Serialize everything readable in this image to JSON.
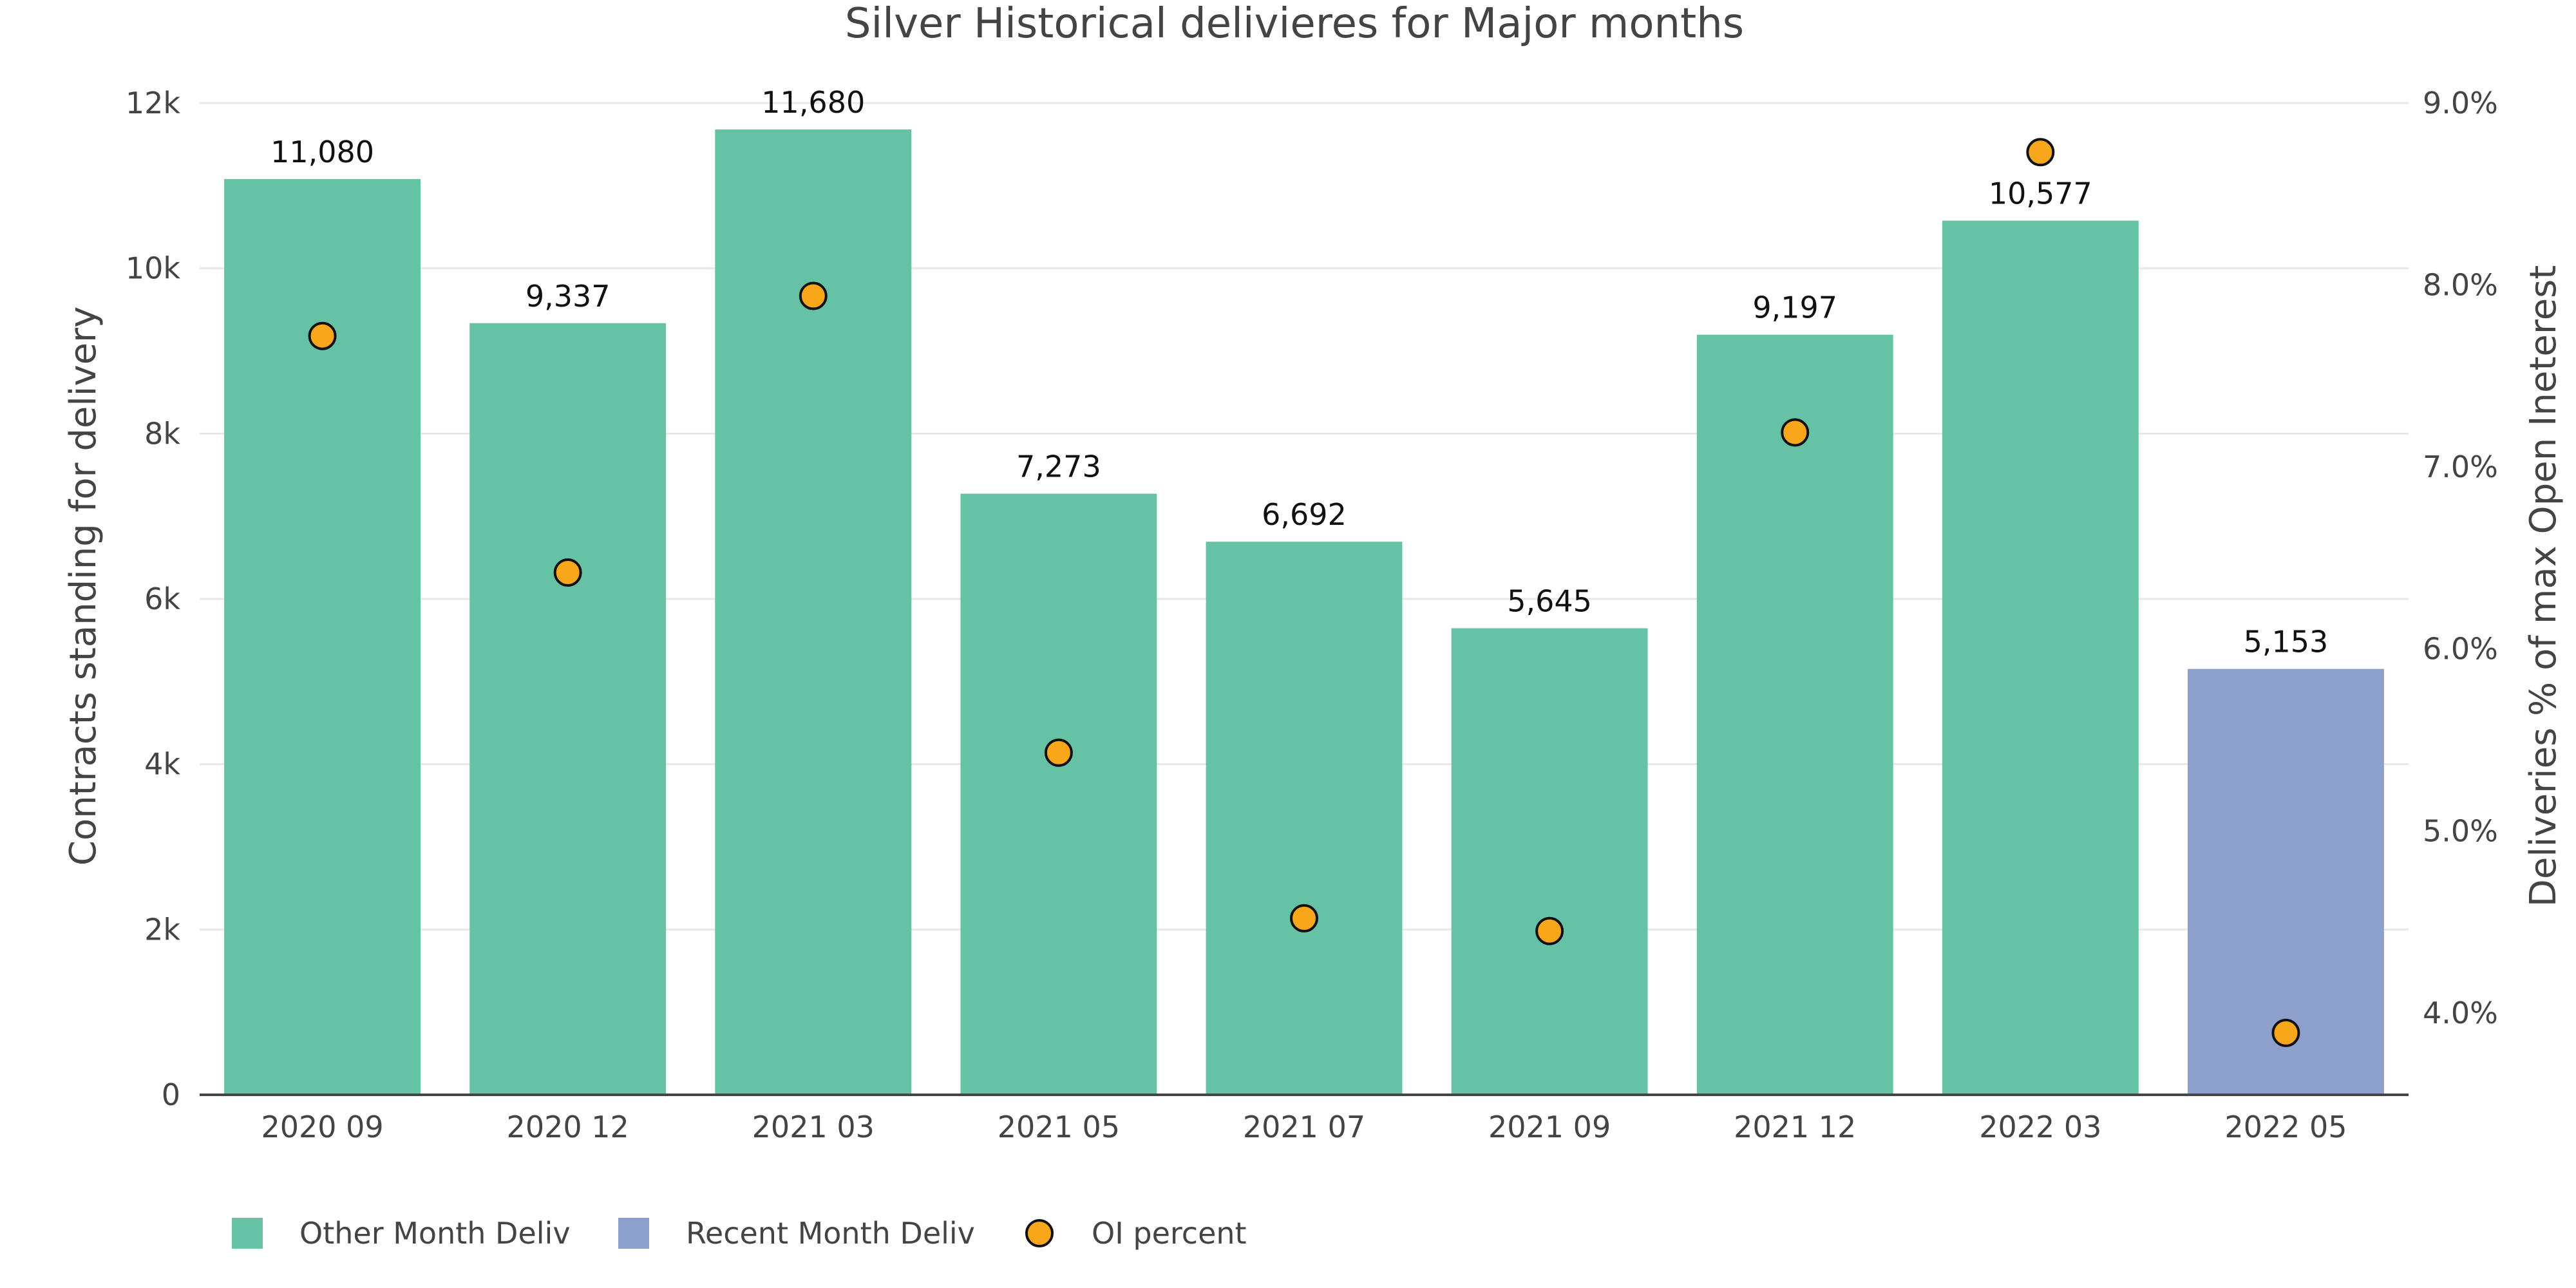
{
  "chart_data": {
    "type": "bar",
    "title": "Silver Historical delivieres for Major months",
    "xlabel": "",
    "ylabel": "Contracts standing for delivery",
    "y2label": "Deliveries % of max Open Ineterest",
    "categories": [
      "2020 09",
      "2020 12",
      "2021 03",
      "2021 05",
      "2021 07",
      "2021 09",
      "2021 12",
      "2022 03",
      "2022 05"
    ],
    "values": [
      11080,
      9337,
      11680,
      7273,
      6692,
      5645,
      9197,
      10577,
      5153
    ],
    "value_labels": [
      "11,080",
      "9,337",
      "11,680",
      "7,273",
      "6,692",
      "5,645",
      "9,197",
      "10,577",
      "5,153"
    ],
    "bar_series": [
      "Other Month Deliv",
      "Other Month Deliv",
      "Other Month Deliv",
      "Other Month Deliv",
      "Other Month Deliv",
      "Other Month Deliv",
      "Other Month Deliv",
      "Other Month Deliv",
      "Recent Month Deliv"
    ],
    "oi_percent": [
      7.72,
      6.42,
      7.94,
      5.43,
      4.52,
      4.45,
      7.19,
      8.73,
      3.89
    ],
    "ylim": [
      0,
      12000
    ],
    "y_ticks": [
      0,
      2000,
      4000,
      6000,
      8000,
      10000,
      12000
    ],
    "y_tick_labels": [
      "0",
      "2k",
      "4k",
      "6k",
      "8k",
      "10k",
      "12k"
    ],
    "y2lim": [
      3.55,
      9.0
    ],
    "y2_ticks": [
      4,
      5,
      6,
      7,
      8,
      9
    ],
    "y2_tick_labels": [
      "4.0%",
      "5.0%",
      "6.0%",
      "7.0%",
      "8.0%",
      "9.0%"
    ],
    "grid": true,
    "legend_position": "bottom-left",
    "series": [
      {
        "name": "Other Month Deliv",
        "kind": "bar",
        "color": "#66c2a5"
      },
      {
        "name": "Recent Month Deliv",
        "kind": "bar",
        "color": "#8da0cb"
      },
      {
        "name": "OI percent",
        "kind": "marker",
        "color": "#f8a71b"
      }
    ]
  }
}
